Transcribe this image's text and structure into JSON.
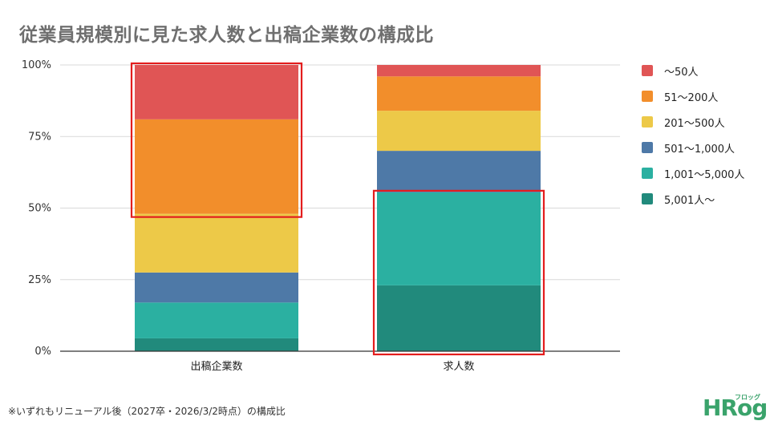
{
  "title": "従業員規模別に見た求人数と出稿企業数の構成比",
  "footnote": "※いずれもリニューアル後（2027卒・2026/3/2時点）の構成比",
  "logo": {
    "main": "HRog",
    "sub": "フロッグ"
  },
  "colors": {
    "s1": "#e05555",
    "s2": "#f28e2b",
    "s3": "#edc948",
    "s4": "#4e79a7",
    "s5": "#2bb0a1",
    "s6": "#218a7c",
    "highlight": "#e31d1d",
    "grid": "#d9d9d9",
    "axis": "#333333"
  },
  "chart_data": {
    "type": "bar",
    "stacked": true,
    "categories": [
      "出稿企業数",
      "求人数"
    ],
    "series": [
      {
        "name": "5,001人〜",
        "values": [
          4.5,
          23
        ]
      },
      {
        "name": "1,001〜5,000人",
        "values": [
          12.5,
          32.5
        ]
      },
      {
        "name": "501〜1,000人",
        "values": [
          10.5,
          14.5
        ]
      },
      {
        "name": "201〜500人",
        "values": [
          20.5,
          14
        ]
      },
      {
        "name": "51〜200人",
        "values": [
          33,
          12
        ]
      },
      {
        "name": "〜50人",
        "values": [
          19,
          4
        ]
      }
    ],
    "legend_order": [
      "〜50人",
      "51〜200人",
      "201〜500人",
      "501〜1,000人",
      "1,001〜5,000人",
      "5,001人〜"
    ],
    "ylim": [
      0,
      100
    ],
    "yticks": [
      "0%",
      "25%",
      "50%",
      "75%",
      "100%"
    ],
    "xlabel": "",
    "ylabel": "",
    "grid": true,
    "legend_position": "right",
    "highlights": [
      {
        "category": "出稿企業数",
        "series": [
          "〜50人",
          "51〜200人"
        ]
      },
      {
        "category": "求人数",
        "series": [
          "5,001人〜",
          "1,001〜5,000人"
        ]
      }
    ]
  }
}
